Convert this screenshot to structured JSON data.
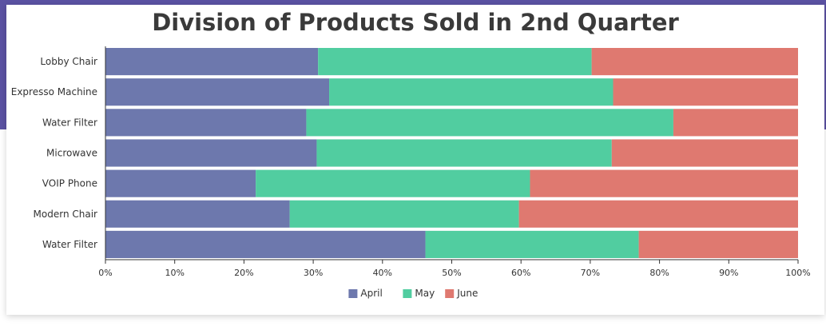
{
  "chart_data": {
    "type": "bar",
    "orientation": "horizontal",
    "stacked": "percent",
    "title": "Division of Products Sold in 2nd Quarter",
    "categories": [
      "Lobby Chair",
      "Expresso Machine",
      "Water Filter",
      "Microwave",
      "VOIP Phone",
      "Modern Chair",
      "Water Filter"
    ],
    "series": [
      {
        "name": "April",
        "color": "#6d78ad",
        "values": [
          30.7,
          32.3,
          29.0,
          30.5,
          21.7,
          26.6,
          46.2
        ]
      },
      {
        "name": "May",
        "color": "#51cda0",
        "values": [
          39.5,
          41.0,
          53.0,
          42.6,
          39.6,
          33.1,
          30.8
        ]
      },
      {
        "name": "June",
        "color": "#df7970",
        "values": [
          29.8,
          26.7,
          18.0,
          26.9,
          38.7,
          40.3,
          23.0
        ]
      }
    ],
    "x_ticks": [
      "0%",
      "10%",
      "20%",
      "30%",
      "40%",
      "50%",
      "60%",
      "70%",
      "80%",
      "90%",
      "100%"
    ],
    "xlim": [
      0,
      100
    ],
    "legend_position": "bottom",
    "grid": false
  }
}
